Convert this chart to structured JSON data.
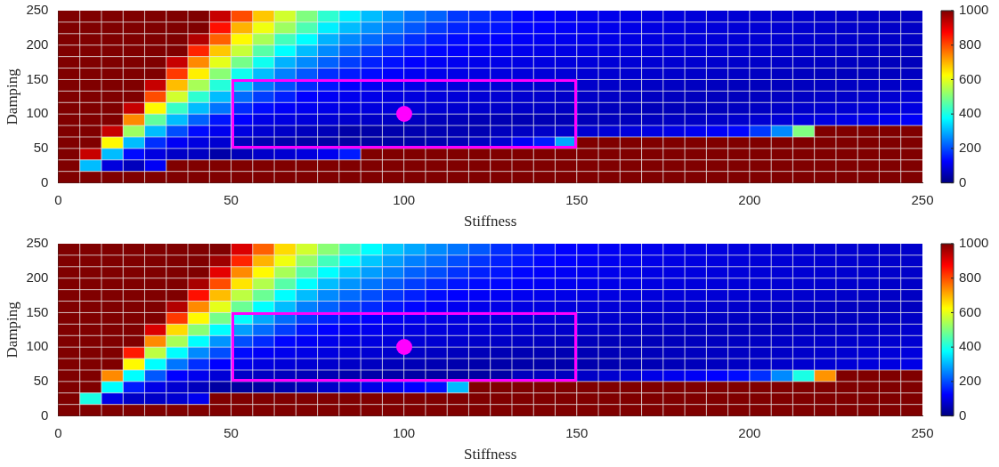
{
  "chart_data": [
    {
      "type": "heatmap",
      "xlabel": "Stiffness",
      "ylabel": "Damping",
      "xlim": [
        0,
        250
      ],
      "ylim": [
        0,
        250
      ],
      "xticks": [
        0,
        50,
        100,
        150,
        200,
        250
      ],
      "yticks": [
        0,
        50,
        100,
        150,
        200,
        250
      ],
      "clim": [
        0,
        1000
      ],
      "cticks": [
        0,
        200,
        400,
        600,
        800,
        1000
      ],
      "grid": true,
      "x": [
        3.125,
        9.375,
        15.625,
        21.875,
        28.125,
        34.375,
        40.625,
        46.875,
        53.125,
        59.375,
        65.625,
        71.875,
        78.125,
        84.375,
        90.625,
        96.875,
        103.125,
        109.375,
        115.625,
        121.875,
        128.125,
        134.375,
        140.625,
        146.875,
        153.125,
        159.375,
        165.625,
        171.875,
        178.125,
        184.375,
        190.625,
        196.875,
        203.125,
        209.375,
        215.625,
        221.875,
        228.125,
        234.375,
        240.625,
        246.875
      ],
      "y": [
        241.67,
        225,
        208.33,
        191.67,
        175,
        158.33,
        141.67,
        125,
        108.33,
        91.67,
        75,
        58.33,
        41.67,
        25,
        8.33
      ],
      "cells": [
        [
          1000,
          1000,
          1000,
          1000,
          1000,
          1000,
          1000,
          930,
          800,
          680,
          580,
          500,
          420,
          360,
          310,
          270,
          240,
          220,
          180,
          170,
          150,
          130,
          125,
          115,
          108,
          105,
          100,
          95,
          92,
          88,
          85,
          82,
          80,
          78,
          76,
          74,
          72,
          70,
          68,
          66
        ],
        [
          1000,
          1000,
          1000,
          1000,
          1000,
          1000,
          1000,
          860,
          700,
          610,
          530,
          450,
          360,
          310,
          270,
          240,
          210,
          180,
          160,
          150,
          145,
          128,
          125,
          118,
          110,
          105,
          100,
          97,
          94,
          90,
          88,
          85,
          83,
          80,
          78,
          76,
          74,
          72,
          70,
          68
        ],
        [
          1000,
          1000,
          1000,
          1000,
          1000,
          1000,
          950,
          780,
          630,
          540,
          440,
          375,
          300,
          260,
          230,
          200,
          170,
          150,
          135,
          130,
          125,
          118,
          112,
          108,
          104,
          100,
          96,
          93,
          90,
          88,
          85,
          83,
          81,
          79,
          77,
          75,
          73,
          71,
          69,
          67
        ],
        [
          1000,
          1000,
          1000,
          1000,
          1000,
          1000,
          840,
          680,
          570,
          460,
          375,
          310,
          260,
          220,
          185,
          160,
          145,
          130,
          122,
          115,
          110,
          106,
          102,
          98,
          95,
          92,
          89,
          87,
          85,
          82,
          80,
          78,
          76,
          74,
          72,
          70,
          68,
          66,
          64,
          62
        ],
        [
          1000,
          1000,
          1000,
          1000,
          1000,
          930,
          740,
          600,
          490,
          390,
          300,
          260,
          220,
          185,
          155,
          140,
          125,
          115,
          110,
          105,
          102,
          98,
          95,
          92,
          89,
          86,
          84,
          82,
          80,
          78,
          76,
          74,
          72,
          70,
          68,
          66,
          64,
          62,
          60,
          58
        ],
        [
          1000,
          1000,
          1000,
          1000,
          1000,
          820,
          640,
          510,
          390,
          310,
          250,
          210,
          170,
          150,
          135,
          122,
          112,
          105,
          100,
          96,
          93,
          90,
          87,
          85,
          82,
          80,
          78,
          76,
          74,
          72,
          70,
          68,
          66,
          64,
          62,
          60,
          60,
          60,
          62,
          64
        ],
        [
          1000,
          1000,
          1000,
          1000,
          930,
          690,
          540,
          410,
          310,
          240,
          200,
          165,
          145,
          122,
          112,
          105,
          100,
          95,
          90,
          87,
          84,
          81,
          78,
          76,
          74,
          72,
          70,
          68,
          66,
          64,
          62,
          60,
          60,
          60,
          62,
          64,
          66,
          68,
          70,
          72
        ],
        [
          1000,
          1000,
          1000,
          1000,
          800,
          580,
          420,
          310,
          230,
          185,
          155,
          125,
          115,
          108,
          102,
          97,
          93,
          90,
          87,
          84,
          81,
          78,
          75,
          72,
          70,
          68,
          66,
          64,
          62,
          60,
          60,
          60,
          62,
          64,
          66,
          70,
          72,
          76,
          80,
          85
        ],
        [
          1000,
          1000,
          1000,
          930,
          630,
          430,
          310,
          240,
          165,
          135,
          118,
          110,
          102,
          97,
          92,
          88,
          84,
          81,
          78,
          75,
          72,
          70,
          68,
          65,
          62,
          60,
          58,
          56,
          56,
          58,
          60,
          63,
          66,
          70,
          74,
          78,
          82,
          86,
          90,
          95
        ],
        [
          1000,
          1000,
          1000,
          740,
          470,
          310,
          220,
          145,
          125,
          100,
          95,
          88,
          82,
          76,
          70,
          66,
          62,
          58,
          55,
          52,
          50,
          50,
          52,
          54,
          56,
          58,
          60,
          62,
          65,
          68,
          72,
          76,
          80,
          85,
          90,
          95,
          100,
          105,
          110,
          118
        ],
        [
          1000,
          1000,
          930,
          530,
          310,
          200,
          135,
          108,
          95,
          80,
          70,
          60,
          55,
          40,
          40,
          45,
          48,
          50,
          50,
          50,
          60,
          65,
          70,
          75,
          80,
          85,
          90,
          95,
          100,
          110,
          118,
          130,
          180,
          260,
          500,
          1000,
          1000,
          1000,
          1000,
          1000
        ],
        [
          1000,
          1000,
          630,
          310,
          170,
          115,
          95,
          80,
          60,
          50,
          45,
          40,
          38,
          35,
          35,
          38,
          42,
          48,
          55,
          65,
          80,
          115,
          150,
          290,
          1000,
          1000,
          1000,
          1000,
          1000,
          1000,
          1000,
          1000,
          1000,
          1000,
          1000,
          1000,
          1000,
          1000,
          1000,
          1000
        ],
        [
          1000,
          930,
          310,
          135,
          95,
          70,
          65,
          40,
          55,
          72,
          80,
          92,
          108,
          150,
          1000,
          1000,
          1000,
          1000,
          1000,
          1000,
          1000,
          1000,
          1000,
          1000,
          1000,
          1000,
          1000,
          1000,
          1000,
          1000,
          1000,
          1000,
          1000,
          1000,
          1000,
          1000,
          1000,
          1000,
          1000,
          1000
        ],
        [
          1000,
          310,
          92,
          60,
          115,
          1000,
          1000,
          1000,
          1000,
          1000,
          1000,
          1000,
          1000,
          1000,
          1000,
          1000,
          1000,
          1000,
          1000,
          1000,
          1000,
          1000,
          1000,
          1000,
          1000,
          1000,
          1000,
          1000,
          1000,
          1000,
          1000,
          1000,
          1000,
          1000,
          1000,
          1000,
          1000,
          1000,
          1000,
          1000
        ],
        [
          1000,
          1000,
          1000,
          1000,
          1000,
          1000,
          1000,
          1000,
          1000,
          1000,
          1000,
          1000,
          1000,
          1000,
          1000,
          1000,
          1000,
          1000,
          1000,
          1000,
          1000,
          1000,
          1000,
          1000,
          1000,
          1000,
          1000,
          1000,
          1000,
          1000,
          1000,
          1000,
          1000,
          1000,
          1000,
          1000,
          1000,
          1000,
          1000,
          1000
        ]
      ]
    },
    {
      "type": "heatmap",
      "xlabel": "Stiffness",
      "ylabel": "Damping",
      "xlim": [
        0,
        250
      ],
      "ylim": [
        0,
        250
      ],
      "xticks": [
        0,
        50,
        100,
        150,
        200,
        250
      ],
      "yticks": [
        0,
        50,
        100,
        150,
        200,
        250
      ],
      "clim": [
        0,
        1000
      ],
      "cticks": [
        0,
        200,
        400,
        600,
        800,
        1000
      ],
      "grid": true,
      "x": [
        3.125,
        9.375,
        15.625,
        21.875,
        28.125,
        34.375,
        40.625,
        46.875,
        53.125,
        59.375,
        65.625,
        71.875,
        78.125,
        84.375,
        90.625,
        96.875,
        103.125,
        109.375,
        115.625,
        121.875,
        128.125,
        134.375,
        140.625,
        146.875,
        153.125,
        159.375,
        165.625,
        171.875,
        178.125,
        184.375,
        190.625,
        196.875,
        203.125,
        209.375,
        215.625,
        221.875,
        228.125,
        234.375,
        240.625,
        246.875
      ],
      "y": [
        241.67,
        225,
        208.33,
        191.67,
        175,
        158.33,
        141.67,
        125,
        108.33,
        91.67,
        75,
        58.33,
        41.67,
        25,
        8.33
      ],
      "cells": [
        [
          1000,
          1000,
          1000,
          1000,
          1000,
          1000,
          1000,
          1000,
          910,
          780,
          660,
          580,
          510,
          440,
          375,
          320,
          290,
          260,
          240,
          210,
          170,
          155,
          140,
          125,
          122,
          115,
          110,
          106,
          102,
          98,
          95,
          92,
          89,
          86,
          84,
          82,
          80,
          78,
          76,
          74
        ],
        [
          1000,
          1000,
          1000,
          1000,
          1000,
          1000,
          1000,
          970,
          840,
          700,
          610,
          520,
          440,
          375,
          320,
          280,
          250,
          230,
          200,
          175,
          155,
          145,
          130,
          125,
          115,
          110,
          106,
          102,
          98,
          95,
          92,
          89,
          86,
          84,
          82,
          80,
          78,
          76,
          74,
          72
        ],
        [
          1000,
          1000,
          1000,
          1000,
          1000,
          1000,
          1000,
          900,
          740,
          630,
          540,
          460,
          375,
          320,
          280,
          250,
          220,
          200,
          175,
          155,
          145,
          130,
          122,
          115,
          110,
          106,
          102,
          99,
          96,
          93,
          90,
          88,
          86,
          84,
          82,
          80,
          78,
          76,
          74,
          72
        ],
        [
          1000,
          1000,
          1000,
          1000,
          1000,
          1000,
          960,
          800,
          650,
          550,
          460,
          375,
          310,
          270,
          240,
          210,
          185,
          165,
          145,
          135,
          130,
          122,
          115,
          110,
          106,
          102,
          99,
          96,
          93,
          90,
          88,
          86,
          84,
          82,
          80,
          78,
          76,
          74,
          72,
          70
        ],
        [
          1000,
          1000,
          1000,
          1000,
          1000,
          1000,
          860,
          690,
          560,
          480,
          375,
          310,
          260,
          230,
          200,
          175,
          155,
          135,
          125,
          118,
          115,
          110,
          106,
          102,
          99,
          96,
          93,
          90,
          88,
          86,
          84,
          82,
          80,
          78,
          76,
          74,
          72,
          70,
          68,
          66
        ],
        [
          1000,
          1000,
          1000,
          1000,
          1000,
          950,
          740,
          600,
          480,
          375,
          310,
          250,
          220,
          185,
          165,
          145,
          130,
          118,
          110,
          105,
          100,
          97,
          94,
          91,
          88,
          86,
          84,
          82,
          80,
          78,
          76,
          74,
          72,
          70,
          68,
          66,
          64,
          62,
          62,
          62
        ],
        [
          1000,
          1000,
          1000,
          1000,
          1000,
          820,
          630,
          490,
          375,
          290,
          230,
          185,
          155,
          140,
          125,
          115,
          108,
          100,
          95,
          92,
          89,
          86,
          83,
          80,
          78,
          76,
          74,
          72,
          70,
          68,
          66,
          64,
          62,
          60,
          60,
          60,
          62,
          64,
          66,
          68
        ],
        [
          1000,
          1000,
          1000,
          1000,
          910,
          660,
          510,
          375,
          280,
          230,
          185,
          145,
          125,
          115,
          108,
          100,
          95,
          91,
          88,
          85,
          82,
          79,
          76,
          73,
          71,
          69,
          67,
          65,
          63,
          61,
          60,
          60,
          60,
          62,
          64,
          66,
          68,
          70,
          72,
          76
        ],
        [
          1000,
          1000,
          1000,
          1000,
          740,
          540,
          375,
          270,
          200,
          165,
          130,
          115,
          105,
          98,
          93,
          88,
          84,
          80,
          76,
          72,
          69,
          66,
          63,
          60,
          58,
          56,
          56,
          56,
          58,
          60,
          62,
          64,
          66,
          68,
          70,
          72,
          74,
          76,
          78,
          80
        ],
        [
          1000,
          1000,
          1000,
          850,
          560,
          375,
          260,
          200,
          135,
          118,
          108,
          100,
          94,
          88,
          82,
          76,
          70,
          65,
          60,
          56,
          52,
          50,
          50,
          50,
          52,
          54,
          56,
          58,
          60,
          62,
          64,
          66,
          68,
          70,
          73,
          76,
          80,
          84,
          88,
          92
        ],
        [
          1000,
          1000,
          1000,
          630,
          375,
          240,
          170,
          125,
          108,
          95,
          88,
          82,
          76,
          70,
          64,
          58,
          54,
          50,
          46,
          44,
          42,
          42,
          42,
          44,
          46,
          48,
          50,
          52,
          55,
          58,
          62,
          66,
          70,
          74,
          78,
          82,
          86,
          90,
          95,
          100
        ],
        [
          1000,
          1000,
          740,
          375,
          210,
          125,
          108,
          85,
          70,
          65,
          60,
          55,
          50,
          45,
          42,
          40,
          38,
          36,
          35,
          35,
          38,
          60,
          62,
          62,
          70,
          78,
          85,
          100,
          108,
          115,
          125,
          135,
          170,
          260,
          400,
          730,
          1000,
          1000,
          1000,
          1000
        ],
        [
          1000,
          1000,
          375,
          150,
          100,
          80,
          60,
          35,
          30,
          35,
          45,
          55,
          70,
          85,
          100,
          112,
          125,
          140,
          310,
          1000,
          1000,
          1000,
          1000,
          1000,
          1000,
          1000,
          1000,
          1000,
          1000,
          1000,
          1000,
          1000,
          1000,
          1000,
          1000,
          1000,
          1000,
          1000,
          1000,
          1000
        ],
        [
          1000,
          400,
          100,
          70,
          70,
          80,
          108,
          1000,
          1000,
          1000,
          1000,
          1000,
          1000,
          1000,
          1000,
          1000,
          1000,
          1000,
          1000,
          1000,
          1000,
          1000,
          1000,
          1000,
          1000,
          1000,
          1000,
          1000,
          1000,
          1000,
          1000,
          1000,
          1000,
          1000,
          1000,
          1000,
          1000,
          1000,
          1000,
          1000
        ],
        [
          1000,
          1000,
          1000,
          1000,
          1000,
          1000,
          1000,
          1000,
          1000,
          1000,
          1000,
          1000,
          1000,
          1000,
          1000,
          1000,
          1000,
          1000,
          1000,
          1000,
          1000,
          1000,
          1000,
          1000,
          1000,
          1000,
          1000,
          1000,
          1000,
          1000,
          1000,
          1000,
          1000,
          1000,
          1000,
          1000,
          1000,
          1000,
          1000,
          1000
        ]
      ]
    }
  ]
}
